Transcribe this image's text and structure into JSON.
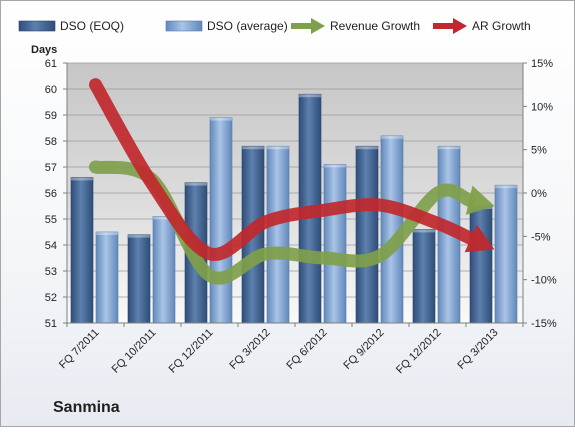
{
  "chart_data": {
    "type": "bar",
    "title": "",
    "company": "Sanmina",
    "ylabel": "Days",
    "y2label": "",
    "categories": [
      "FQ 7/2011",
      "FQ 10/2011",
      "FQ 12/2011",
      "FQ 3/2012",
      "FQ 6/2012",
      "FQ 9/2012",
      "FQ 12/2012",
      "FQ 3/2013"
    ],
    "ylim": [
      51,
      61
    ],
    "yticks": [
      "51",
      "52",
      "53",
      "54",
      "55",
      "56",
      "57",
      "58",
      "59",
      "60",
      "61"
    ],
    "y2lim": [
      -15,
      15
    ],
    "y2ticks": [
      "-15%",
      "-10%",
      "-5%",
      "0%",
      "5%",
      "10%",
      "15%"
    ],
    "bar_series": [
      {
        "name": "DSO (EOQ)",
        "values": [
          56.6,
          54.4,
          56.4,
          57.8,
          59.8,
          57.8,
          54.6,
          55.5
        ],
        "color": "#4a6b97"
      },
      {
        "name": "DSO (average)",
        "values": [
          54.5,
          55.1,
          58.9,
          57.8,
          57.1,
          58.2,
          57.8,
          56.3
        ],
        "color": "#7fa2cf"
      }
    ],
    "line_series": [
      {
        "name": "Revenue Growth",
        "values": [
          3.0,
          1.5,
          -9.5,
          -7.0,
          -7.5,
          -7.2,
          0.0,
          -1.5
        ],
        "color": "#7fa04a"
      },
      {
        "name": "AR Growth",
        "values": [
          12.5,
          1.0,
          -7.0,
          -3.3,
          -2.0,
          -1.4,
          -3.5,
          -6.5
        ],
        "color": "#c0282d"
      }
    ],
    "legend": [
      "DSO (EOQ)",
      "DSO (average)",
      "Revenue Growth",
      "AR Growth"
    ],
    "legend_position": "top",
    "grid": true
  }
}
